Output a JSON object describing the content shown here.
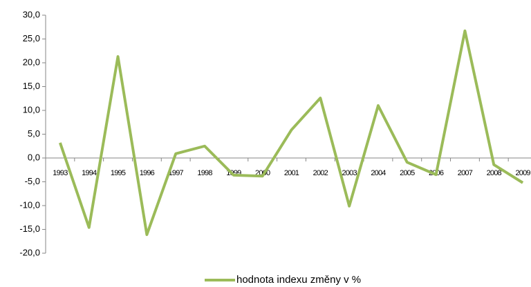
{
  "chart_data": {
    "type": "line",
    "categories": [
      "1993",
      "1994",
      "1995",
      "1996",
      "1997",
      "1998",
      "1999",
      "2000",
      "2001",
      "2002",
      "2003",
      "2004",
      "2005",
      "2006",
      "2007",
      "2008",
      "2009"
    ],
    "series": [
      {
        "name": "hodnota indexu změny v %",
        "color": "#9bbb59",
        "values": [
          3.2,
          -14.6,
          21.3,
          -16.1,
          0.9,
          2.5,
          -3.6,
          -3.8,
          5.9,
          12.6,
          -10.1,
          11.0,
          -0.9,
          -3.5,
          26.7,
          -1.4,
          -5.2
        ]
      }
    ],
    "ylim": [
      -20,
      30
    ],
    "yticks": [
      {
        "value": -20,
        "label": "-20,0"
      },
      {
        "value": -15,
        "label": "-15,0"
      },
      {
        "value": -10,
        "label": "-10,0"
      },
      {
        "value": -5,
        "label": "-5,0"
      },
      {
        "value": 0,
        "label": "0,0"
      },
      {
        "value": 5,
        "label": "5,0"
      },
      {
        "value": 10,
        "label": "10,0"
      },
      {
        "value": 15,
        "label": "15,0"
      },
      {
        "value": 20,
        "label": "20,0"
      },
      {
        "value": 25,
        "label": "25,0"
      },
      {
        "value": 30,
        "label": "30,0"
      }
    ],
    "grid": false,
    "legend": "bottom"
  }
}
